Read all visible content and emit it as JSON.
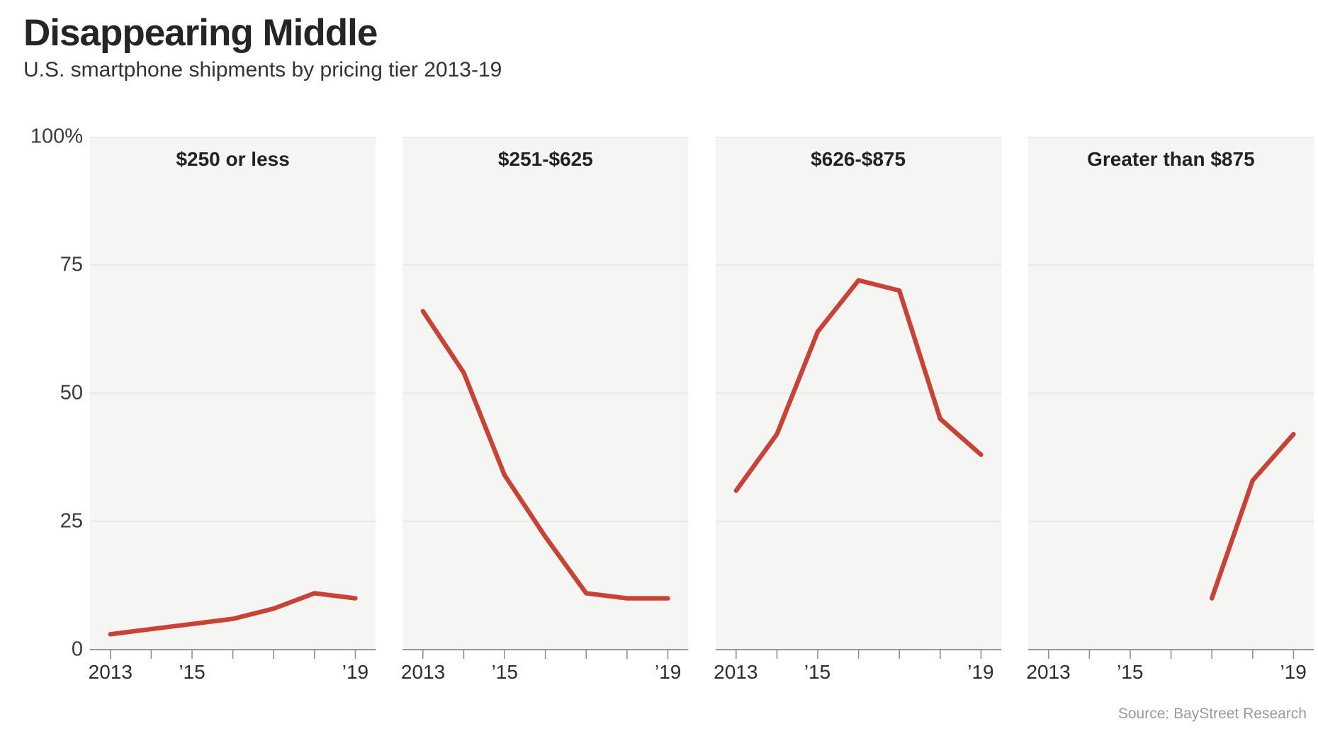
{
  "header": {
    "title": "Disappearing Middle",
    "subtitle": "U.S. smartphone shipments by pricing tier 2013-19"
  },
  "source_note": "Source: BayStreet Research",
  "chart_data": {
    "type": "line",
    "title": "Disappearing Middle",
    "subtitle": "U.S. smartphone shipments by pricing tier 2013-19",
    "x": [
      2013,
      2014,
      2015,
      2016,
      2017,
      2018,
      2019
    ],
    "x_tick_labels": [
      "2013",
      "’15",
      "’19"
    ],
    "x_tick_label_positions": [
      2013,
      2015,
      2019
    ],
    "y_axis": {
      "ticks": [
        "100%",
        "75",
        "50",
        "25",
        "0"
      ],
      "range": [
        0,
        100
      ],
      "gridlines": [
        100,
        75,
        50,
        25
      ],
      "unit": "percent"
    },
    "grid": "on",
    "legend": "none",
    "panels": [
      {
        "title": "$250 or less",
        "values": [
          3,
          4,
          5,
          6,
          8,
          11,
          10
        ]
      },
      {
        "title": "$251-$625",
        "values": [
          66,
          54,
          34,
          22,
          11,
          10,
          10
        ]
      },
      {
        "title": "$626-$875",
        "values": [
          31,
          42,
          62,
          72,
          70,
          45,
          38
        ]
      },
      {
        "title": "Greater than $875",
        "values": [
          null,
          null,
          null,
          null,
          10,
          33,
          42
        ]
      }
    ],
    "colors": {
      "line": "#c84335",
      "panel_background": "#f5f5f3",
      "gridline": "#e5e5e3",
      "axis_line": "#767676",
      "tick_mark": "#8f8f8f"
    }
  }
}
